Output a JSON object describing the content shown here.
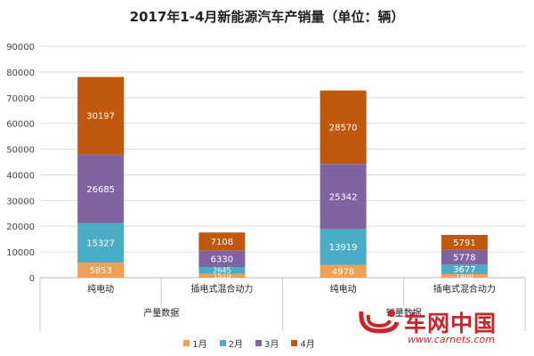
{
  "chart_data": {
    "type": "bar",
    "stacked": true,
    "title": "2017年1-4月新能源汽车产销量（单位：辆）",
    "groups": [
      "产量数据",
      "销量数据"
    ],
    "categories": [
      "纯电动",
      "插电式混合动力",
      "纯电动",
      "插电式混合动力"
    ],
    "category_group": [
      0,
      0,
      1,
      1
    ],
    "series": [
      {
        "name": "1月",
        "color": "#f0a054",
        "values": [
          5853,
          1510,
          4978,
          1400
        ]
      },
      {
        "name": "2月",
        "color": "#4bacc6",
        "values": [
          15327,
          2645,
          13919,
          3677
        ]
      },
      {
        "name": "3月",
        "color": "#8064a2",
        "values": [
          26685,
          6330,
          25342,
          5778
        ]
      },
      {
        "name": "4月",
        "color": "#c0580e",
        "values": [
          30197,
          7108,
          28570,
          5791
        ]
      }
    ],
    "data_labels": [
      [
        "5853",
        "1510",
        "4978",
        "1400"
      ],
      [
        "15327",
        "2645",
        "13919",
        "3677"
      ],
      [
        "26685",
        "6330",
        "25342",
        "5778"
      ],
      [
        "30197",
        "7108",
        "28570",
        "5791"
      ]
    ],
    "ylim": [
      0,
      90000
    ],
    "yticks": [
      0,
      10000,
      20000,
      30000,
      40000,
      50000,
      60000,
      70000,
      80000,
      90000
    ],
    "grid": true,
    "legend_position": "bottom"
  },
  "watermark": {
    "name": "车网中国",
    "url": "www.carnets.com"
  }
}
